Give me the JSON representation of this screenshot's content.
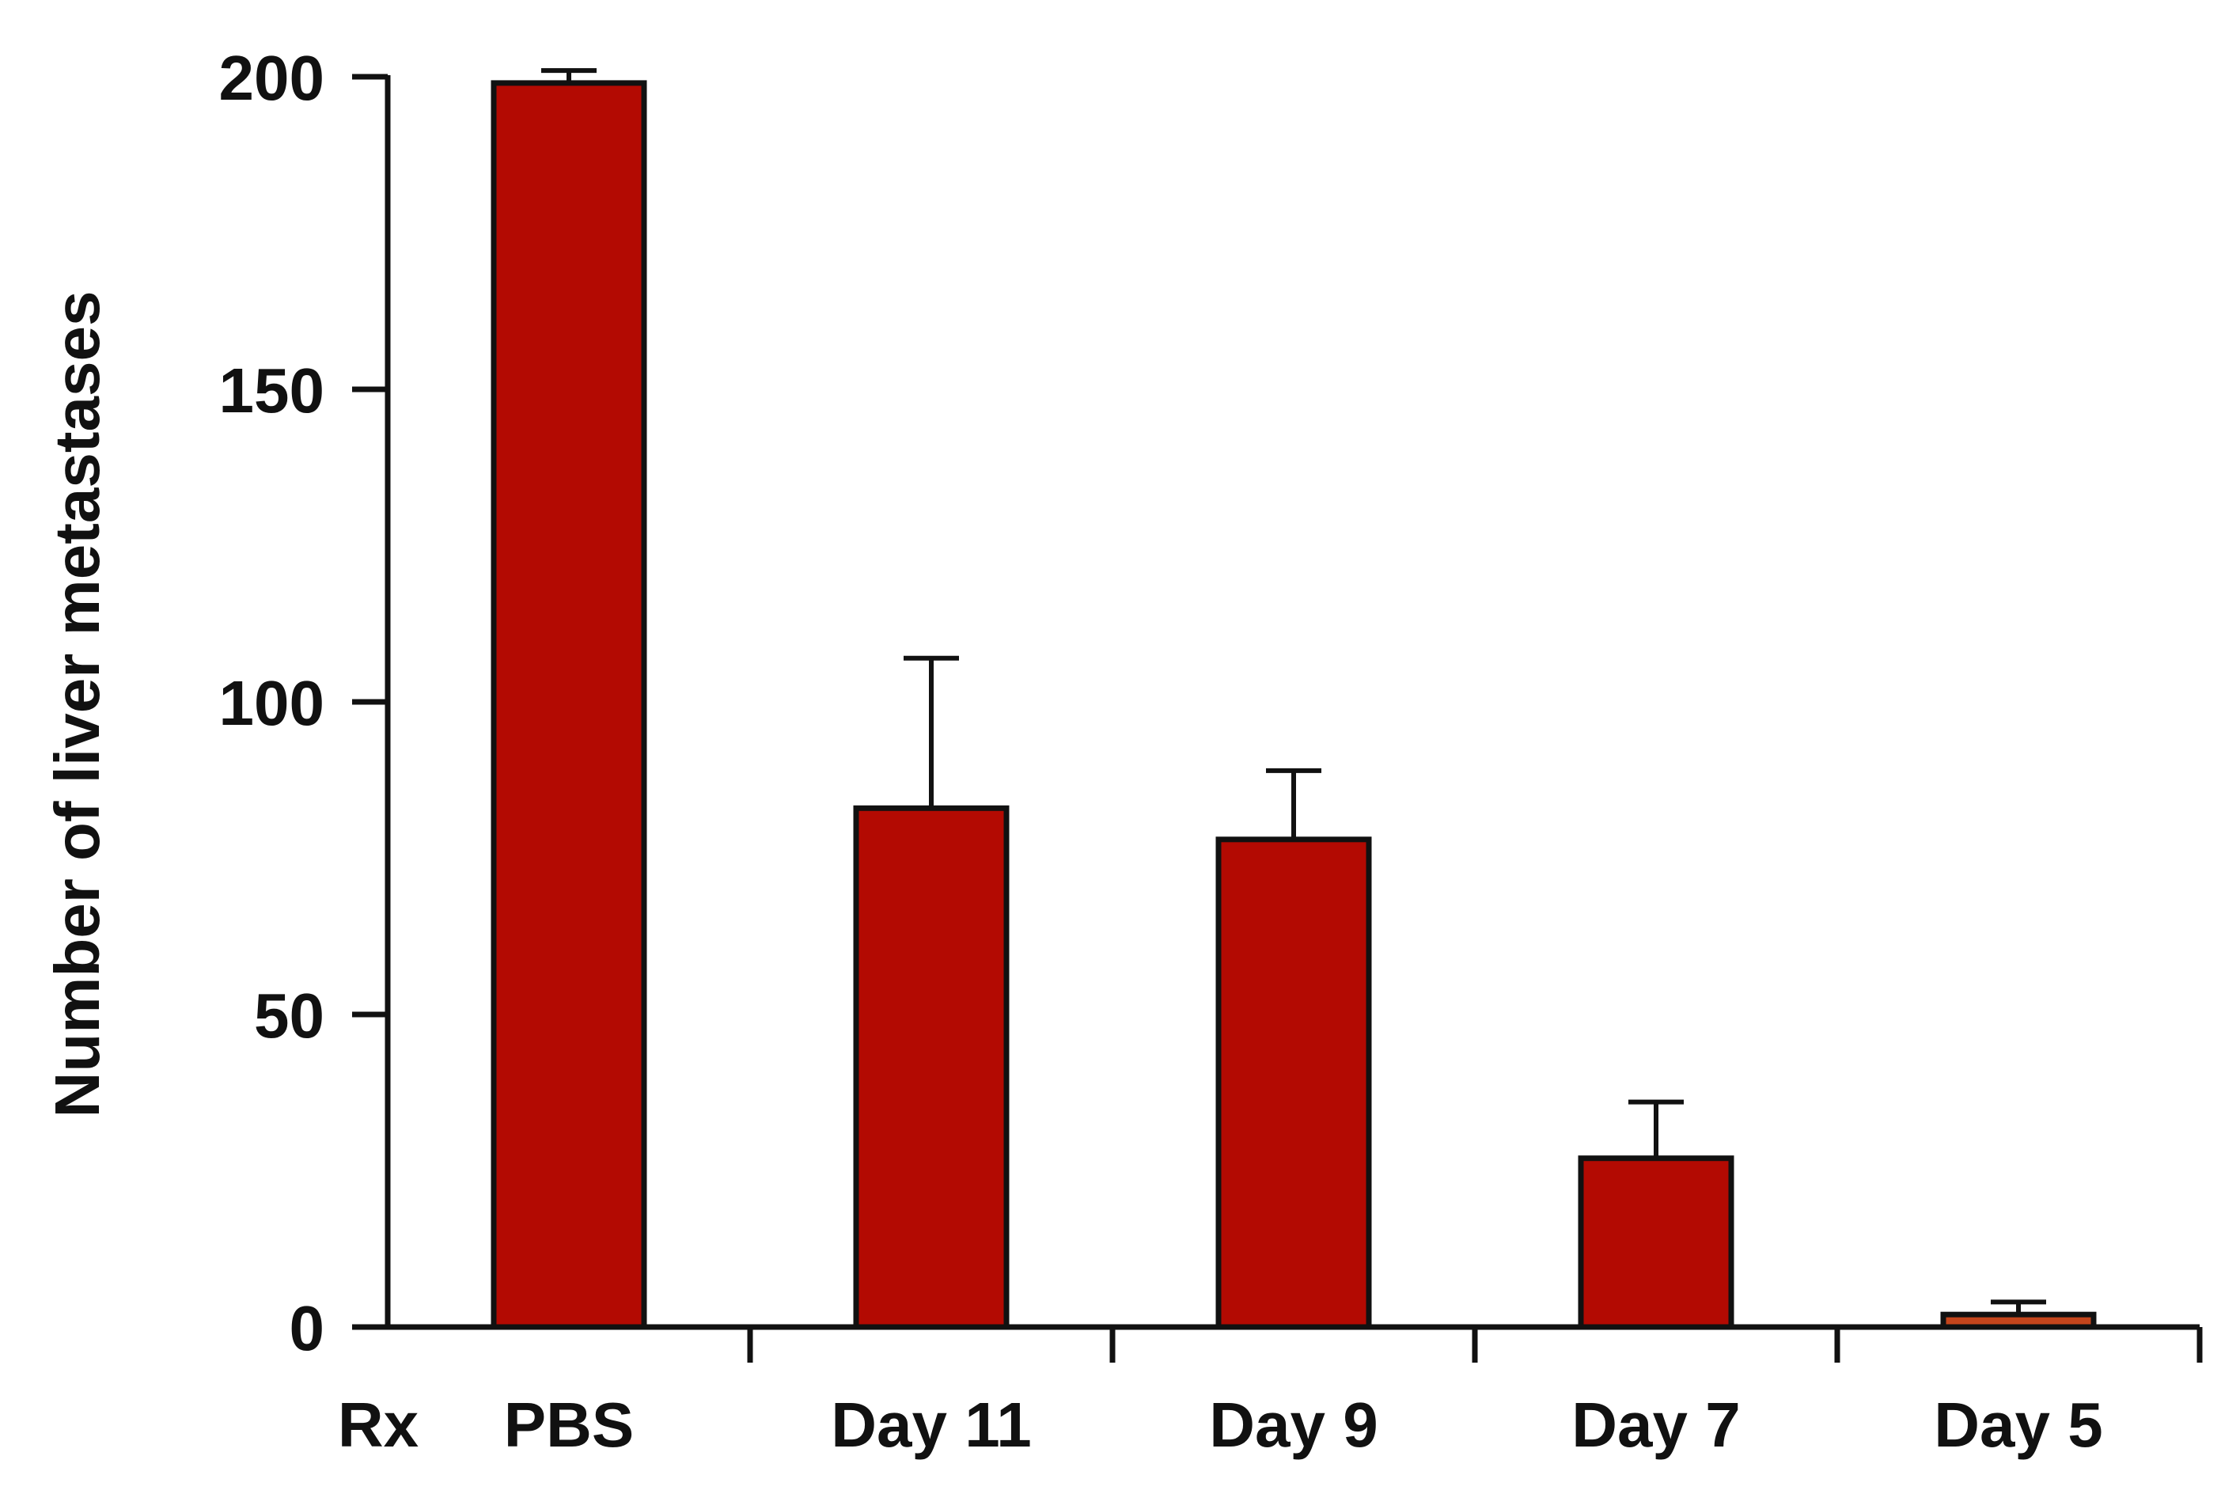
{
  "chart_data": {
    "type": "bar",
    "title": "",
    "xlabel_prefix": "Rx",
    "ylabel": "Number of liver metastases",
    "categories": [
      "PBS",
      "Day 11",
      "Day 9",
      "Day 7",
      "Day 5"
    ],
    "values": [
      199,
      83,
      78,
      27,
      2
    ],
    "error_upper": [
      201,
      107,
      89,
      36,
      4
    ],
    "ylim": [
      0,
      200
    ],
    "yticks": [
      0,
      50,
      100,
      150,
      200
    ],
    "grid": false,
    "legend": "none",
    "colors": {
      "bar": "#b30a02",
      "bar_last": "#c4451c",
      "outline": "#111111",
      "axis": "#111111"
    }
  }
}
